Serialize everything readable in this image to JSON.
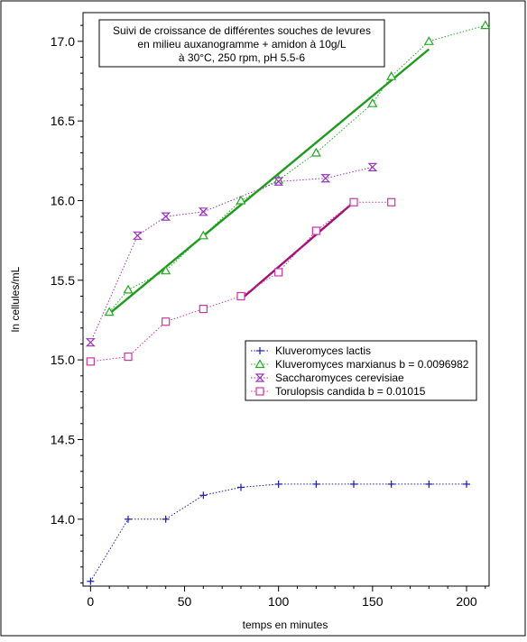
{
  "chart_data": {
    "type": "line",
    "title": [
      "Suivi de croissance de différentes souches de levures",
      "en milieu auxanogramme + amidon à 10g/L",
      "à 30°C, 250 rpm, pH 5.5-6"
    ],
    "xlabel": "temps en minutes",
    "ylabel": "ln cellules/mL",
    "xlim": [
      -4,
      212
    ],
    "ylim": [
      13.58,
      17.18
    ],
    "xticks": [
      0,
      50,
      100,
      150,
      200
    ],
    "yticks": [
      14.0,
      14.5,
      15.0,
      15.5,
      16.0,
      16.5,
      17.0
    ],
    "grid": false,
    "legend_position": "center-right",
    "series": [
      {
        "name": "Kluveromyces lactis",
        "color": "#1a1aa6",
        "marker": "plus",
        "x": [
          0,
          20,
          40,
          60,
          80,
          100,
          120,
          140,
          160,
          180,
          200
        ],
        "y": [
          13.61,
          14.0,
          14.0,
          14.15,
          14.2,
          14.22,
          14.22,
          14.22,
          14.22,
          14.22,
          14.22
        ]
      },
      {
        "name": "Kluveromyces marxianus b = 0.0096982",
        "color": "#22aa22",
        "marker": "triangle",
        "x": [
          10,
          20,
          40,
          60,
          80,
          100,
          120,
          150,
          160,
          180,
          210
        ],
        "y": [
          15.3,
          15.44,
          15.56,
          15.78,
          16.0,
          16.13,
          16.3,
          16.61,
          16.78,
          17.0,
          17.1
        ]
      },
      {
        "name": "Saccharomyces cerevisiae",
        "color": "#9933bb",
        "marker": "hourglass",
        "x": [
          0,
          25,
          40,
          60,
          100,
          125,
          150
        ],
        "y": [
          15.11,
          15.78,
          15.9,
          15.93,
          16.12,
          16.14,
          16.21
        ]
      },
      {
        "name": "Torulopsis candida b = 0.01015",
        "color": "#cc33aa",
        "marker": "square",
        "x": [
          0,
          20,
          40,
          60,
          80,
          100,
          120,
          140,
          160
        ],
        "y": [
          14.99,
          15.02,
          15.24,
          15.32,
          15.4,
          15.55,
          15.81,
          15.99,
          15.99
        ]
      }
    ],
    "fits": [
      {
        "series": "Kluveromyces marxianus b = 0.0096982",
        "color": "#1f9a1f",
        "x": [
          10,
          180
        ],
        "y": [
          15.29,
          16.95
        ]
      },
      {
        "series": "Torulopsis candida b = 0.01015",
        "color": "#a0106e",
        "x": [
          80,
          140
        ],
        "y": [
          15.38,
          15.99
        ]
      }
    ]
  }
}
